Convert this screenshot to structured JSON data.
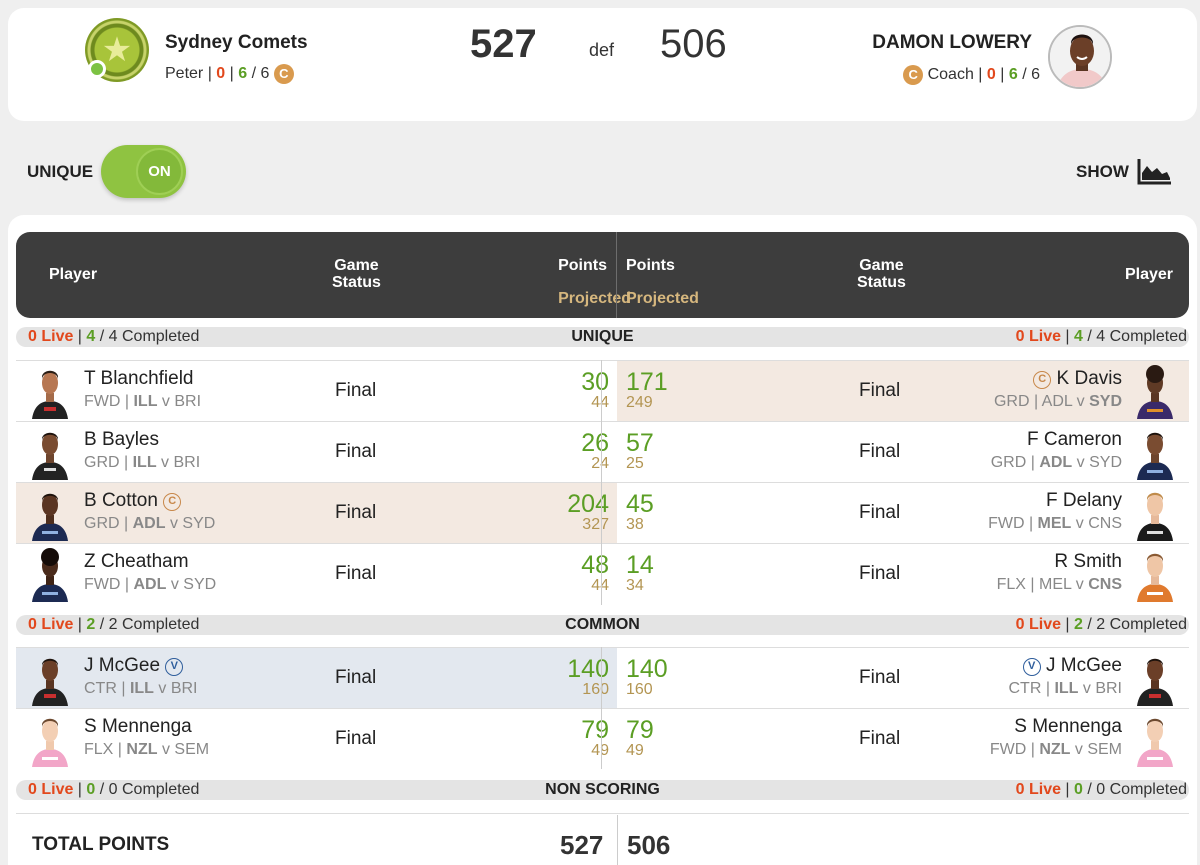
{
  "header": {
    "left_team": {
      "name": "Sydney Comets",
      "owner": "Peter",
      "live": "0",
      "done": "6",
      "total": "6",
      "captain_badge": "C"
    },
    "score_left": "527",
    "result": "def",
    "score_right": "506",
    "right_team": {
      "name": "DAMON LOWERY",
      "captain_badge": "C",
      "owner": "Coach",
      "live": "0",
      "done": "6",
      "total": "6"
    }
  },
  "controls": {
    "unique_label": "UNIQUE",
    "toggle_state": "ON",
    "show_label": "SHOW"
  },
  "table_header": {
    "player_left": "Player",
    "game_left": "Game",
    "status_left": "Status",
    "points_left": "Points",
    "projected_left": "Projected",
    "points_right": "Points",
    "projected_right": "Projected",
    "game_right": "Game",
    "status_right": "Status",
    "player_right": "Player"
  },
  "sections": {
    "unique": {
      "title": "UNIQUE",
      "left_live": "0 Live",
      "left_done": "4",
      "left_total": "/ 4 Completed",
      "right_live": "0 Live",
      "right_done": "4",
      "right_total": "/ 4 Completed"
    },
    "common": {
      "title": "COMMON",
      "left_live": "0 Live",
      "left_done": "2",
      "left_total": "/ 2 Completed",
      "right_live": "0 Live",
      "right_done": "2",
      "right_total": "/ 2 Completed"
    },
    "non_scoring": {
      "title": "NON SCORING",
      "left_live": "0 Live",
      "left_done": "0",
      "left_total": "/ 0 Completed",
      "right_live": "0 Live",
      "right_done": "0",
      "right_total": "/ 0 Completed"
    }
  },
  "rows": [
    {
      "l_name": "T Blanchfield",
      "l_pos": "FWD",
      "l_t1": "ILL",
      "l_t2": "BRI",
      "l_status": "Final",
      "l_pts": "30",
      "l_proj": "44",
      "r_name": "K Davis",
      "r_pos": "GRD",
      "r_t1": "ADL",
      "r_t2": "SYD",
      "r_status": "Final",
      "r_pts": "171",
      "r_proj": "249"
    },
    {
      "l_name": "B Bayles",
      "l_pos": "GRD",
      "l_t1": "ILL",
      "l_t2": "BRI",
      "l_status": "Final",
      "l_pts": "26",
      "l_proj": "24",
      "r_name": "F Cameron",
      "r_pos": "GRD",
      "r_t1": "ADL",
      "r_t2": "SYD",
      "r_status": "Final",
      "r_pts": "57",
      "r_proj": "25"
    },
    {
      "l_name": "B Cotton",
      "l_pos": "GRD",
      "l_t1": "ADL",
      "l_t2": "SYD",
      "l_status": "Final",
      "l_pts": "204",
      "l_proj": "327",
      "r_name": "F Delany",
      "r_pos": "FWD",
      "r_t1": "MEL",
      "r_t2": "CNS",
      "r_status": "Final",
      "r_pts": "45",
      "r_proj": "38"
    },
    {
      "l_name": "Z Cheatham",
      "l_pos": "FWD",
      "l_t1": "ADL",
      "l_t2": "SYD",
      "l_status": "Final",
      "l_pts": "48",
      "l_proj": "44",
      "r_name": "R Smith",
      "r_pos": "FLX",
      "r_t1": "MEL",
      "r_t2": "CNS",
      "r_status": "Final",
      "r_pts": "14",
      "r_proj": "34"
    },
    {
      "l_name": "J McGee",
      "l_pos": "CTR",
      "l_t1": "ILL",
      "l_t2": "BRI",
      "l_status": "Final",
      "l_pts": "140",
      "l_proj": "160",
      "r_name": "J McGee",
      "r_pos": "CTR",
      "r_t1": "ILL",
      "r_t2": "BRI",
      "r_status": "Final",
      "r_pts": "140",
      "r_proj": "160"
    },
    {
      "l_name": "S Mennenga",
      "l_pos": "FLX",
      "l_t1": "NZL",
      "l_t2": "SEM",
      "l_status": "Final",
      "l_pts": "79",
      "l_proj": "49",
      "r_name": "S Mennenga",
      "r_pos": "FWD",
      "r_t1": "NZL",
      "r_t2": "SEM",
      "r_status": "Final",
      "r_pts": "79",
      "r_proj": "49"
    }
  ],
  "badges": {
    "captain": "C",
    "vice": "V"
  },
  "totals": {
    "label": "TOTAL POINTS",
    "left": "527",
    "right": "506"
  },
  "colors": {
    "live_red": "#e2481c",
    "done_green": "#5b9e24",
    "points_green": "#5b9e24",
    "projected_gold": "#b39552",
    "header_dark": "#3d3d3d",
    "toggle_green": "#8fc341"
  }
}
